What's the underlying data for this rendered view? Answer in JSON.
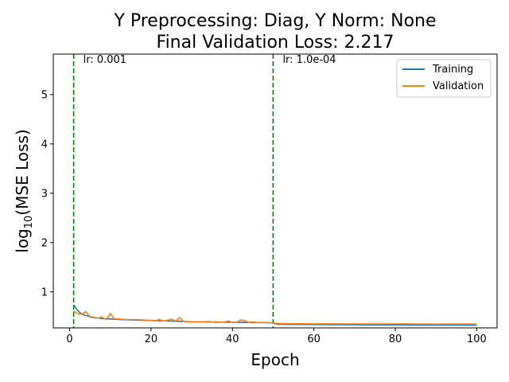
{
  "chart_data": {
    "type": "line",
    "title_line1": "Y Preprocessing: Diag, Y Norm: None",
    "title_line2": "Final Validation Loss: 2.217",
    "xlabel": "Epoch",
    "ylabel_prefix": "log",
    "ylabel_sub": "10",
    "ylabel_suffix": "(MSE Loss)",
    "xlim": [
      -4,
      105
    ],
    "ylim": [
      0.27,
      5.82
    ],
    "x_ticks": [
      0,
      20,
      40,
      60,
      80,
      100
    ],
    "y_ticks": [
      1,
      2,
      3,
      4,
      5
    ],
    "grid": false,
    "legend_position": "top-right",
    "vlines": [
      {
        "x": 1,
        "label": "lr: 0.001",
        "color": "#008000"
      },
      {
        "x": 50,
        "label": "lr: 1.0e-04",
        "color": "#008000"
      }
    ],
    "series": [
      {
        "name": "Training",
        "color": "#1f77b4",
        "points": [
          [
            1,
            0.74
          ],
          [
            2,
            0.62
          ],
          [
            3,
            0.55
          ],
          [
            4,
            0.52
          ],
          [
            5,
            0.5
          ],
          [
            6,
            0.48
          ],
          [
            7,
            0.47
          ],
          [
            8,
            0.46
          ],
          [
            9,
            0.455
          ],
          [
            10,
            0.45
          ],
          [
            12,
            0.44
          ],
          [
            14,
            0.435
          ],
          [
            16,
            0.43
          ],
          [
            18,
            0.425
          ],
          [
            20,
            0.42
          ],
          [
            22,
            0.415
          ],
          [
            24,
            0.41
          ],
          [
            26,
            0.405
          ],
          [
            28,
            0.4
          ],
          [
            30,
            0.395
          ],
          [
            32,
            0.392
          ],
          [
            34,
            0.39
          ],
          [
            36,
            0.388
          ],
          [
            38,
            0.386
          ],
          [
            40,
            0.384
          ],
          [
            42,
            0.382
          ],
          [
            44,
            0.38
          ],
          [
            46,
            0.378
          ],
          [
            48,
            0.376
          ],
          [
            50,
            0.37
          ],
          [
            51,
            0.345
          ],
          [
            52,
            0.342
          ],
          [
            55,
            0.34
          ],
          [
            60,
            0.337
          ],
          [
            65,
            0.335
          ],
          [
            70,
            0.333
          ],
          [
            75,
            0.331
          ],
          [
            80,
            0.33
          ],
          [
            85,
            0.328
          ],
          [
            90,
            0.327
          ],
          [
            95,
            0.326
          ],
          [
            100,
            0.325
          ]
        ]
      },
      {
        "name": "Validation",
        "color": "#ff7f0e",
        "points": [
          [
            1,
            0.61
          ],
          [
            2,
            0.56
          ],
          [
            3,
            0.55
          ],
          [
            4,
            0.6
          ],
          [
            5,
            0.49
          ],
          [
            6,
            0.47
          ],
          [
            7,
            0.47
          ],
          [
            8,
            0.49
          ],
          [
            9,
            0.44
          ],
          [
            10,
            0.56
          ],
          [
            11,
            0.45
          ],
          [
            12,
            0.45
          ],
          [
            14,
            0.44
          ],
          [
            16,
            0.44
          ],
          [
            18,
            0.43
          ],
          [
            20,
            0.42
          ],
          [
            21,
            0.41
          ],
          [
            22,
            0.44
          ],
          [
            23,
            0.41
          ],
          [
            24,
            0.42
          ],
          [
            25,
            0.45
          ],
          [
            26,
            0.41
          ],
          [
            27,
            0.48
          ],
          [
            28,
            0.4
          ],
          [
            30,
            0.39
          ],
          [
            32,
            0.39
          ],
          [
            34,
            0.4
          ],
          [
            36,
            0.38
          ],
          [
            38,
            0.39
          ],
          [
            39,
            0.41
          ],
          [
            40,
            0.38
          ],
          [
            41,
            0.38
          ],
          [
            42,
            0.43
          ],
          [
            43,
            0.42
          ],
          [
            44,
            0.38
          ],
          [
            45,
            0.39
          ],
          [
            46,
            0.38
          ],
          [
            48,
            0.38
          ],
          [
            50,
            0.37
          ],
          [
            51,
            0.36
          ],
          [
            52,
            0.355
          ],
          [
            55,
            0.355
          ],
          [
            60,
            0.353
          ],
          [
            65,
            0.352
          ],
          [
            70,
            0.351
          ],
          [
            75,
            0.35
          ],
          [
            80,
            0.35
          ],
          [
            82,
            0.352
          ],
          [
            85,
            0.349
          ],
          [
            90,
            0.348
          ],
          [
            95,
            0.349
          ],
          [
            100,
            0.348
          ]
        ]
      }
    ]
  }
}
